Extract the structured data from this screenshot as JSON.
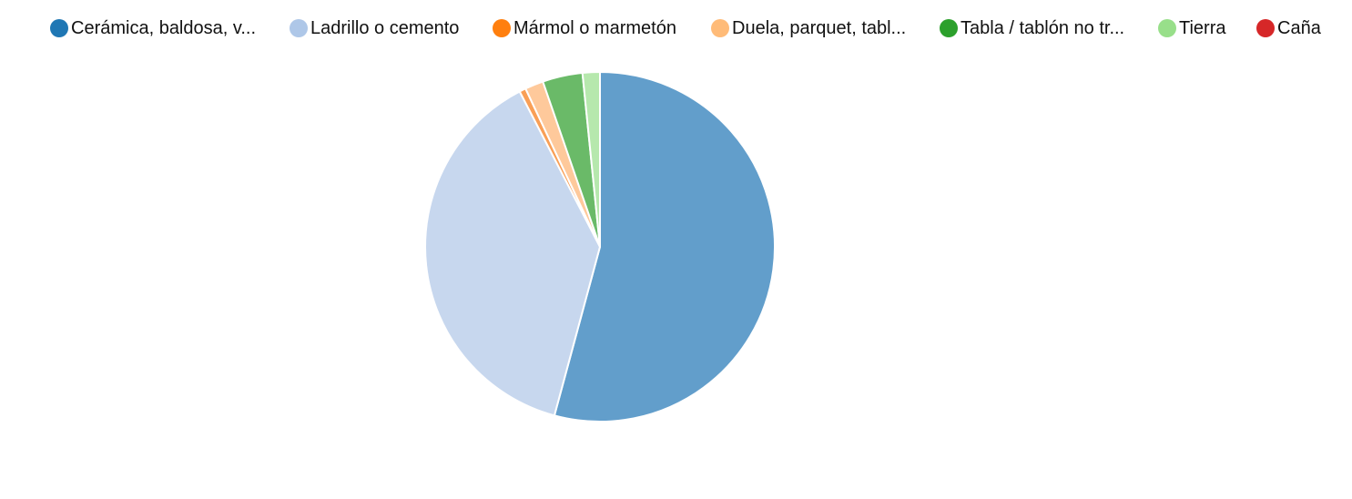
{
  "chart_data": {
    "type": "pie",
    "legend_position": "top",
    "categories": [
      "Cerámica, baldosa, v...",
      "Ladrillo o cemento",
      "Mármol o marmetón",
      "Duela, parquet, tabl...",
      "Tabla / tablón no tr...",
      "Tierra",
      "Caña"
    ],
    "values": [
      54.2,
      38.2,
      0.6,
      1.7,
      3.7,
      1.6,
      0.0
    ],
    "legend_colors": [
      "#1f77b4",
      "#aec7e8",
      "#ff7f0e",
      "#ffbb78",
      "#2ca02c",
      "#98df8a",
      "#d62728"
    ],
    "slice_colors": [
      "#629ecb",
      "#c7d7ee",
      "#f99f56",
      "#fec99b",
      "#6aba68",
      "#b6e8ad",
      "#e07070"
    ]
  }
}
